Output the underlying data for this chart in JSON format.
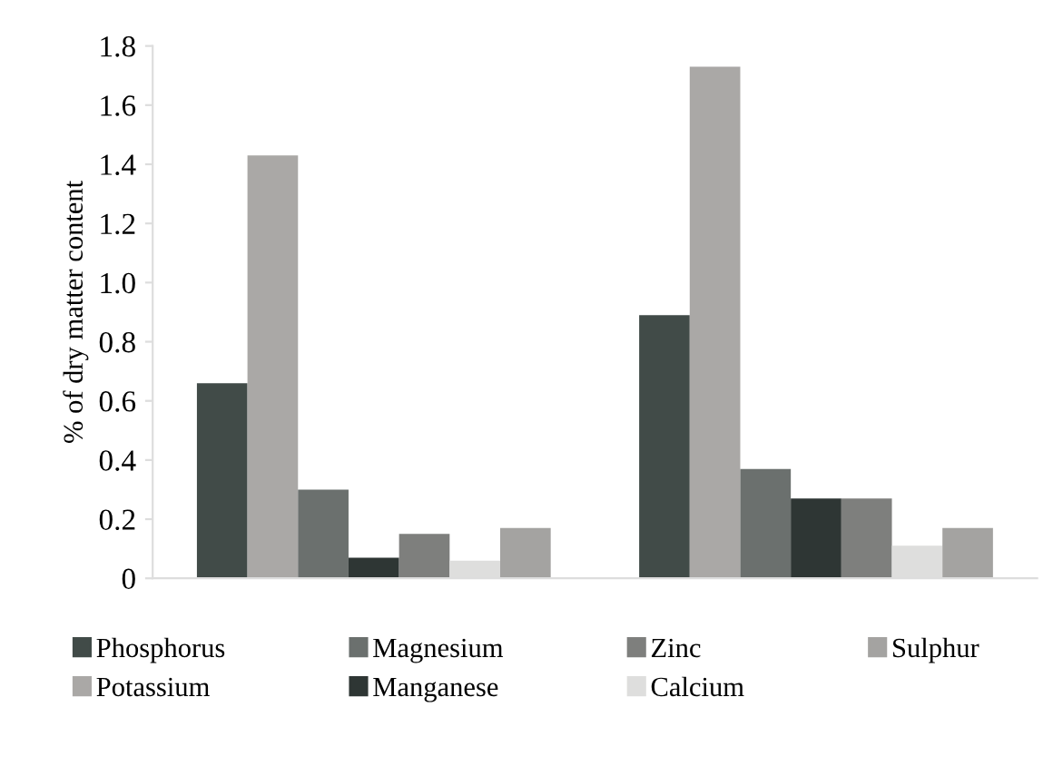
{
  "chart_data": {
    "type": "bar",
    "ylabel": "% of dry matter content",
    "categories": [
      null,
      null
    ],
    "series": [
      {
        "name": "Phosphorus",
        "color": "#414b48",
        "values": [
          0.66,
          0.89
        ]
      },
      {
        "name": "Potassium",
        "color": "#aaa8a6",
        "values": [
          1.43,
          1.73
        ]
      },
      {
        "name": "Magnesium",
        "color": "#6b706e",
        "values": [
          0.3,
          0.37
        ]
      },
      {
        "name": "Manganese",
        "color": "#2e3634",
        "values": [
          0.07,
          0.27
        ]
      },
      {
        "name": "Zinc",
        "color": "#7e7f7d",
        "values": [
          0.15,
          0.27
        ]
      },
      {
        "name": "Calcium",
        "color": "#dededd",
        "values": [
          0.06,
          0.11
        ]
      },
      {
        "name": "Sulphur",
        "color": "#a4a3a1",
        "values": [
          0.17,
          0.17
        ]
      }
    ],
    "ylim": [
      0,
      1.8
    ],
    "yticks": [
      0,
      {
        "value": 0.2,
        "label": "0.2"
      },
      {
        "value": 0.4,
        "label": "0.4"
      },
      {
        "value": 0.6,
        "label": "0.6"
      },
      {
        "value": 0.8,
        "label": "0.8"
      },
      {
        "value": 1.0,
        "label": "1.0"
      },
      {
        "value": 1.2,
        "label": "1.2"
      },
      {
        "value": 1.4,
        "label": "1.4"
      },
      {
        "value": 1.6,
        "label": "1.6"
      },
      {
        "value": 1.8,
        "label": "1.8"
      }
    ],
    "grid": false,
    "legend": "bottom"
  }
}
